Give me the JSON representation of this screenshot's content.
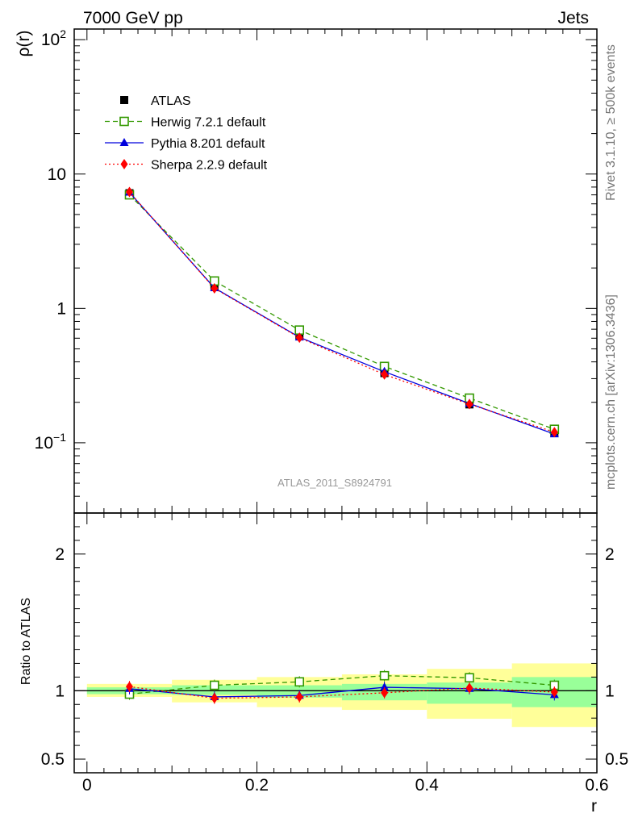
{
  "chart_data": [
    {
      "type": "line",
      "header": {
        "left": "7000 GeV pp",
        "right": "Jets"
      },
      "side_labels": {
        "top": "Rivet 3.1.10, ≥ 500k events",
        "bottom": "mcplots.cern.ch [arXiv:1306.3436]"
      },
      "analysis_label": "ATLAS_2011_S8924791",
      "ylabel": "ρ(r)",
      "yscale": "log",
      "ylim": [
        0.03,
        120
      ],
      "xlim": [
        -0.015,
        0.6
      ],
      "yticks": [
        {
          "value": 100,
          "base": "10",
          "exp": "2"
        },
        {
          "value": 10,
          "base": "10",
          "exp": ""
        },
        {
          "value": 1,
          "base": "1",
          "exp": ""
        },
        {
          "value": 0.1,
          "base": "10",
          "exp": "−1"
        }
      ],
      "x": [
        0.05,
        0.15,
        0.25,
        0.35,
        0.45,
        0.55
      ],
      "series": [
        {
          "name": "ATLAS",
          "color": "#000000",
          "marker": "square-filled",
          "line": "none",
          "values": [
            7.2,
            1.48,
            0.63,
            0.33,
            0.193,
            0.118
          ]
        },
        {
          "name": "Herwig 7.2.1 default",
          "color": "#339900",
          "marker": "square-open",
          "line": "dashed",
          "values": [
            7.0,
            1.6,
            0.69,
            0.37,
            0.215,
            0.126
          ]
        },
        {
          "name": "Pythia 8.201 default",
          "color": "#0000dd",
          "marker": "triangle",
          "line": "solid",
          "values": [
            7.3,
            1.42,
            0.61,
            0.338,
            0.196,
            0.116
          ]
        },
        {
          "name": "Sherpa 2.2.9 default",
          "color": "#ff0000",
          "marker": "diamond",
          "line": "dotted",
          "values": [
            7.35,
            1.41,
            0.605,
            0.322,
            0.194,
            0.12
          ]
        }
      ],
      "legend_position": "top-left"
    },
    {
      "type": "line",
      "ylabel": "Ratio to ATLAS",
      "xlabel": "r",
      "ylim": [
        0.4,
        2.3
      ],
      "xlim": [
        -0.015,
        0.6
      ],
      "xticks": [
        {
          "value": 0,
          "label": "0"
        },
        {
          "value": 0.2,
          "label": "0.2"
        },
        {
          "value": 0.4,
          "label": "0.4"
        },
        {
          "value": 0.6,
          "label": "0.6"
        }
      ],
      "yticks": [
        {
          "value": 2,
          "label": "2"
        },
        {
          "value": 1,
          "label": "1"
        },
        {
          "value": 0.5,
          "label": "0.5"
        }
      ],
      "x": [
        0.05,
        0.15,
        0.25,
        0.35,
        0.45,
        0.55
      ],
      "bins": [
        [
          0.0,
          0.1
        ],
        [
          0.1,
          0.2
        ],
        [
          0.2,
          0.3
        ],
        [
          0.3,
          0.4
        ],
        [
          0.4,
          0.5
        ],
        [
          0.5,
          0.6
        ]
      ],
      "bands": [
        {
          "kind": "total uncertainty",
          "color": "#ffff99",
          "low": [
            0.955,
            0.915,
            0.88,
            0.86,
            0.795,
            0.735
          ],
          "high": [
            1.05,
            1.08,
            1.1,
            1.12,
            1.16,
            1.2
          ]
        },
        {
          "kind": "statistical uncertainty",
          "color": "#99ff99",
          "low": [
            0.975,
            0.97,
            0.95,
            0.93,
            0.905,
            0.88
          ],
          "high": [
            1.025,
            1.04,
            1.04,
            1.05,
            1.06,
            1.1
          ]
        }
      ],
      "series": [
        {
          "name": "Herwig 7.2.1 default",
          "color": "#339900",
          "marker": "square-open",
          "line": "dashed",
          "values": [
            0.975,
            1.04,
            1.065,
            1.11,
            1.095,
            1.04
          ]
        },
        {
          "name": "Pythia 8.201 default",
          "color": "#0000dd",
          "marker": "triangle",
          "line": "solid",
          "values": [
            1.015,
            0.955,
            0.965,
            1.025,
            1.015,
            0.97
          ]
        },
        {
          "name": "Sherpa 2.2.9 default",
          "color": "#ff0000",
          "marker": "diamond",
          "line": "dotted",
          "values": [
            1.03,
            0.945,
            0.955,
            0.985,
            1.02,
            0.99
          ]
        }
      ]
    }
  ]
}
